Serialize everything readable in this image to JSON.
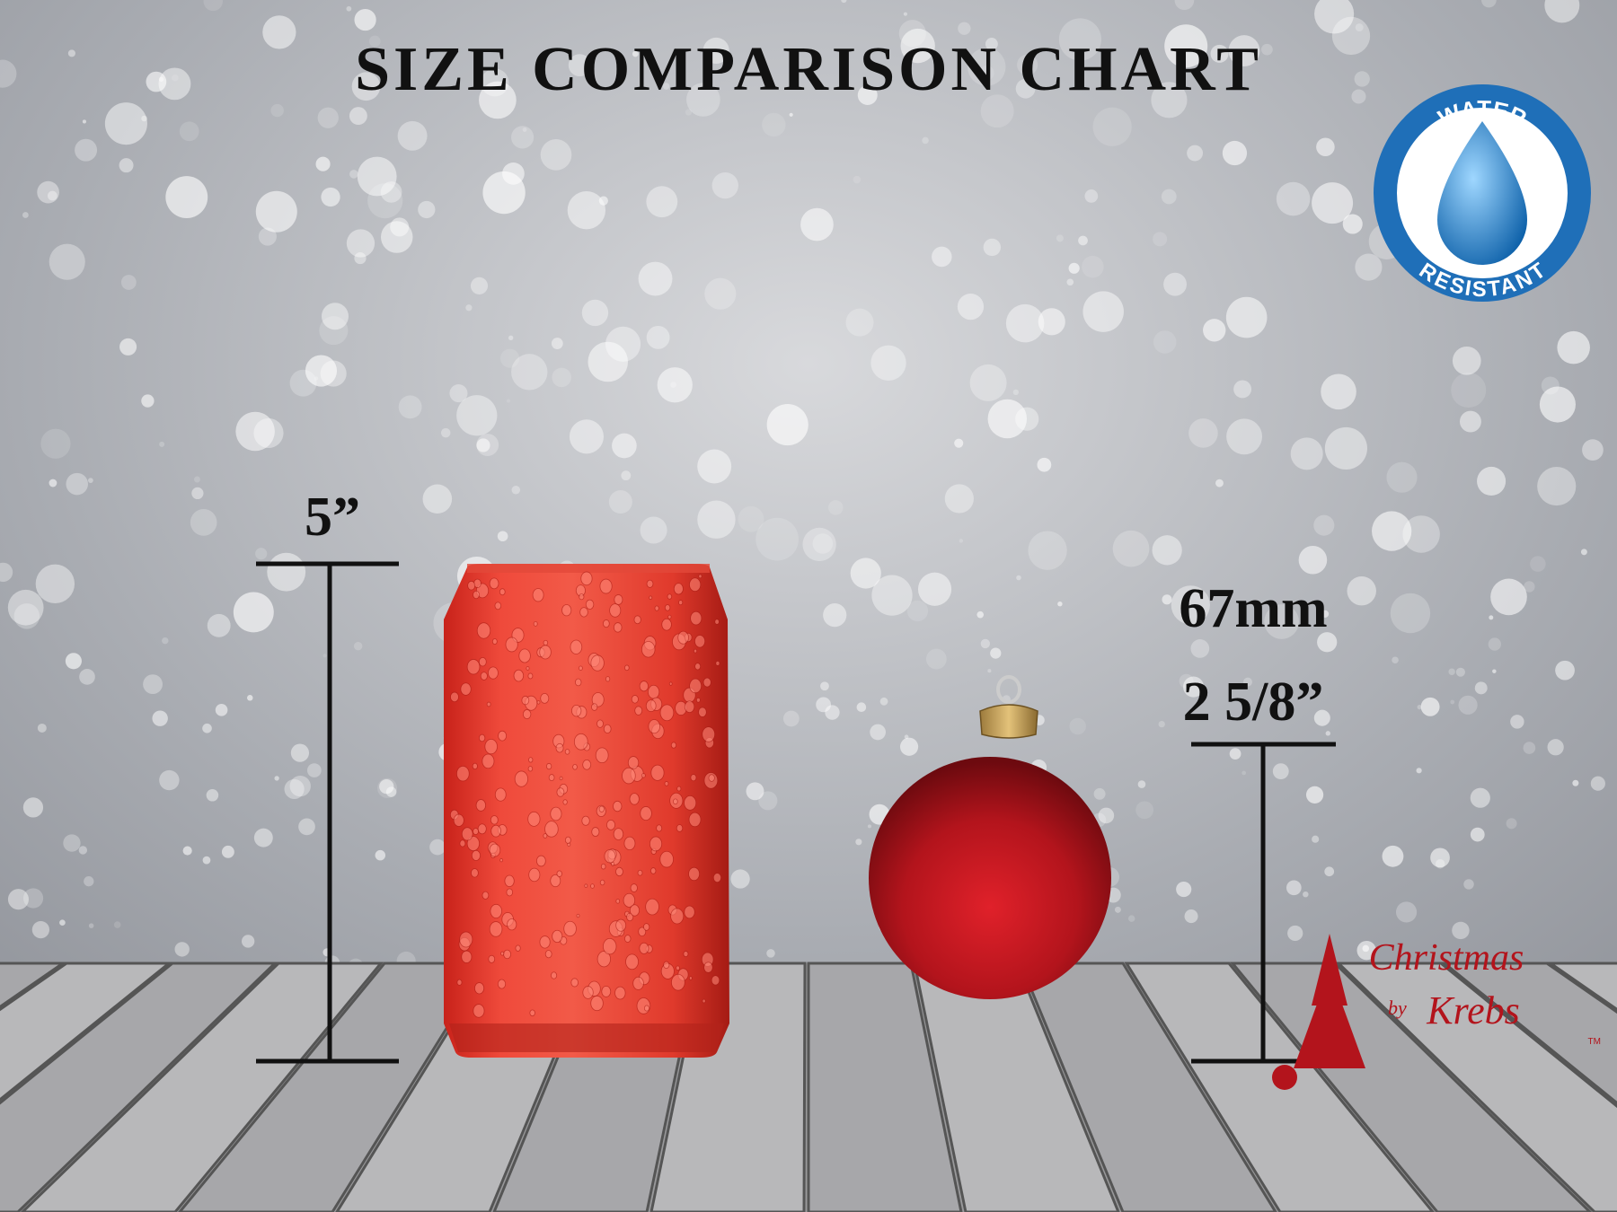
{
  "title": "SIZE COMPARISON CHART",
  "can": {
    "height_label": "5”"
  },
  "ornament": {
    "diameter_mm": "67mm",
    "diameter_in": "2 5/8”"
  },
  "badge": {
    "top": "WATER",
    "bottom": "RESISTANT"
  },
  "logo": {
    "name": "Christmas",
    "by": "by",
    "maker": "Krebs",
    "tm": "TM"
  }
}
